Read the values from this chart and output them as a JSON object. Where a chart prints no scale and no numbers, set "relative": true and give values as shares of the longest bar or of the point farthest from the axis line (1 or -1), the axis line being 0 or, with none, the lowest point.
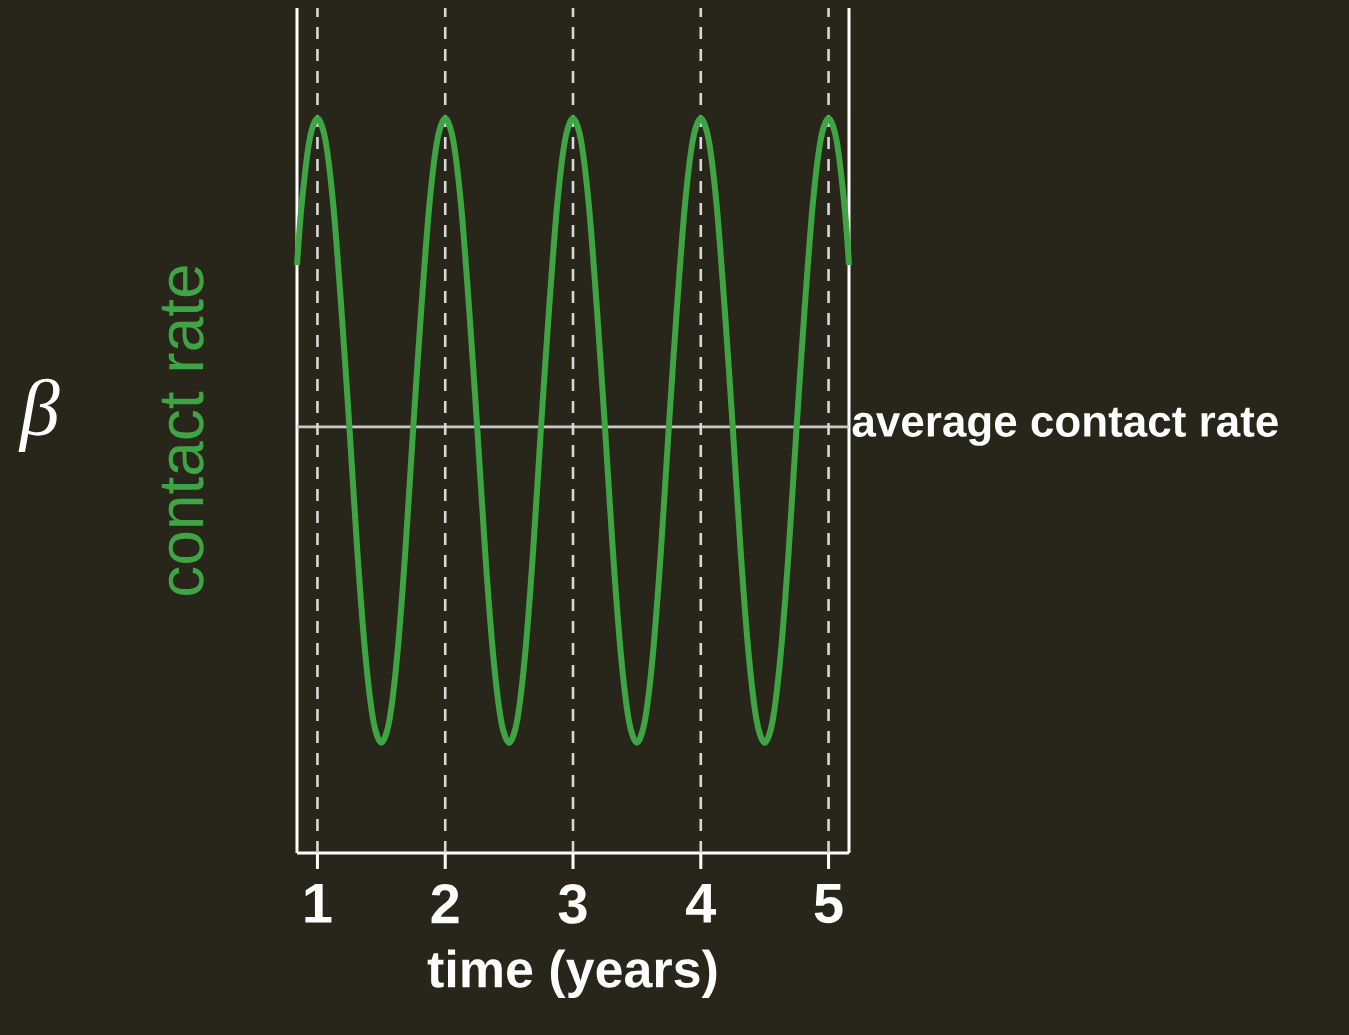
{
  "chart_data": {
    "type": "line",
    "relative": true,
    "tick_labels": "x",
    "xlabel": "time (years)",
    "ylabel": "contact rate",
    "xlim": [
      0.84,
      5.16
    ],
    "xticks": [
      1,
      2,
      3,
      4,
      5
    ],
    "annotations": [
      "β"
    ],
    "ref_lines": [
      {
        "axis": "y",
        "value": 0.58,
        "label": "average contact rate",
        "color": "#c8c8c8",
        "line_style": "solid"
      },
      {
        "axis": "x",
        "value": 1,
        "label": null,
        "color": "#d8d8d8",
        "line_style": "dashed"
      },
      {
        "axis": "x",
        "value": 2,
        "label": null,
        "color": "#d8d8d8",
        "line_style": "dashed"
      },
      {
        "axis": "x",
        "value": 3,
        "label": null,
        "color": "#d8d8d8",
        "line_style": "dashed"
      },
      {
        "axis": "x",
        "value": 4,
        "label": null,
        "color": "#d8d8d8",
        "line_style": "dashed"
      },
      {
        "axis": "x",
        "value": 5,
        "label": null,
        "color": "#d8d8d8",
        "line_style": "dashed"
      }
    ],
    "series": [
      {
        "color": "#3fa444",
        "x": [
          0.84,
          0.875,
          0.9375,
          1,
          1.0625,
          1.125,
          1.1875,
          1.25,
          1.3125,
          1.375,
          1.4375,
          1.5,
          1.5625,
          1.625,
          1.6875,
          1.75,
          1.8125,
          1.875,
          1.9375,
          2,
          2.0625,
          2.125,
          2.1875,
          2.25,
          2.3125,
          2.375,
          2.4375,
          2.5,
          2.5625,
          2.625,
          2.6875,
          2.75,
          2.8125,
          2.875,
          2.9375,
          3,
          3.0625,
          3.125,
          3.1875,
          3.25,
          3.3125,
          3.375,
          3.4375,
          3.5,
          3.5625,
          3.625,
          3.6875,
          3.75,
          3.8125,
          3.875,
          3.9375,
          4,
          4.0625,
          4.125,
          4.1875,
          4.25,
          4.3125,
          4.375,
          4.4375,
          4.5,
          4.5625,
          4.625,
          4.6875,
          4.75,
          4.8125,
          4.875,
          4.9375,
          5,
          5.0625,
          5.125,
          5.16
        ],
        "values": [
          0.8,
          0.88,
          0.97,
          1.0,
          0.97,
          0.88,
          0.74,
          0.58,
          0.41,
          0.27,
          0.18,
          0.15,
          0.18,
          0.27,
          0.41,
          0.58,
          0.74,
          0.88,
          0.97,
          1.0,
          0.97,
          0.88,
          0.74,
          0.58,
          0.41,
          0.27,
          0.18,
          0.15,
          0.18,
          0.27,
          0.41,
          0.58,
          0.74,
          0.88,
          0.97,
          1.0,
          0.97,
          0.88,
          0.74,
          0.58,
          0.41,
          0.27,
          0.18,
          0.15,
          0.18,
          0.27,
          0.41,
          0.58,
          0.74,
          0.88,
          0.97,
          1.0,
          0.97,
          0.88,
          0.74,
          0.58,
          0.41,
          0.27,
          0.18,
          0.15,
          0.18,
          0.27,
          0.41,
          0.58,
          0.74,
          0.88,
          0.97,
          1.0,
          0.97,
          0.88,
          0.8
        ]
      }
    ]
  }
}
